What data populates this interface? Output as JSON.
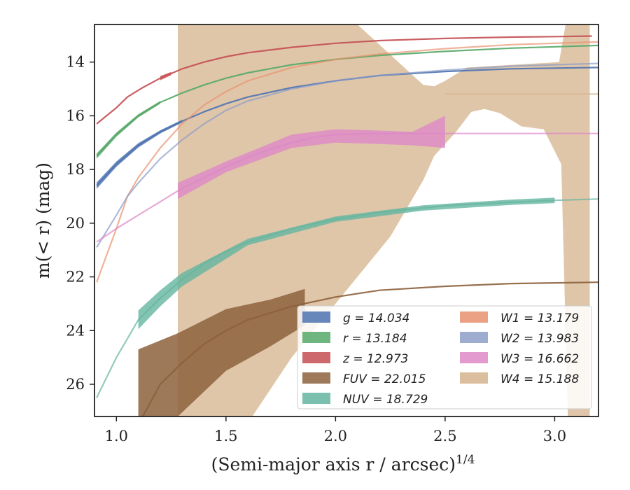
{
  "chart_data": {
    "type": "line",
    "xlabel": "(Semi-major axis r / arcsec)",
    "xlabel_exponent": "1/4",
    "ylabel": "m(< r) (mag)",
    "xlim": [
      0.9,
      3.2
    ],
    "ylim": [
      27.2,
      12.6
    ],
    "y_inverted": true,
    "grid": false,
    "legend_position": "lower-right",
    "x_ticks": [
      {
        "v": 1.0,
        "label": "1.0"
      },
      {
        "v": 1.5,
        "label": "1.5"
      },
      {
        "v": 2.0,
        "label": "2.0"
      },
      {
        "v": 2.5,
        "label": "2.5"
      },
      {
        "v": 3.0,
        "label": "3.0"
      }
    ],
    "y_ticks": [
      {
        "v": 14,
        "label": "14"
      },
      {
        "v": 16,
        "label": "16"
      },
      {
        "v": 18,
        "label": "18"
      },
      {
        "v": 20,
        "label": "20"
      },
      {
        "v": 22,
        "label": "22"
      },
      {
        "v": 24,
        "label": "24"
      },
      {
        "v": 26,
        "label": "26"
      }
    ],
    "series": [
      {
        "name": "g",
        "legend": "g = 14.034",
        "color": "#4c72b0",
        "x": [
          0.91,
          1.0,
          1.1,
          1.2,
          1.3,
          1.4,
          1.5,
          1.6,
          1.8,
          2.0,
          2.2,
          2.5,
          2.8,
          3.2
        ],
        "y": [
          18.6,
          17.8,
          17.1,
          16.6,
          16.2,
          15.85,
          15.55,
          15.3,
          14.95,
          14.7,
          14.5,
          14.35,
          14.25,
          14.2
        ],
        "band_x": [
          0.91,
          1.0,
          1.1,
          1.2,
          1.3
        ],
        "band_width": [
          0.12,
          0.1,
          0.08,
          0.06,
          0.05
        ]
      },
      {
        "name": "r",
        "legend": "r = 13.184",
        "color": "#55a868",
        "x": [
          0.91,
          1.0,
          1.1,
          1.2,
          1.3,
          1.4,
          1.5,
          1.6,
          1.8,
          2.0,
          2.2,
          2.5,
          2.8,
          3.2
        ],
        "y": [
          17.5,
          16.7,
          16.0,
          15.5,
          15.15,
          14.85,
          14.6,
          14.4,
          14.1,
          13.9,
          13.75,
          13.6,
          13.48,
          13.38
        ],
        "band_x": [
          0.91,
          1.0,
          1.1,
          1.2
        ],
        "band_width": [
          0.1,
          0.08,
          0.06,
          0.05
        ]
      },
      {
        "name": "z",
        "legend": "z = 12.973",
        "color": "#c44e52",
        "x": [
          0.91,
          1.0,
          1.05,
          1.12,
          1.2,
          1.3,
          1.4,
          1.5,
          1.6,
          1.8,
          2.0,
          2.2,
          2.5,
          2.8,
          3.0,
          3.17
        ],
        "y": [
          16.3,
          15.7,
          15.3,
          14.95,
          14.6,
          14.25,
          14.0,
          13.8,
          13.65,
          13.45,
          13.3,
          13.2,
          13.12,
          13.07,
          13.05,
          13.03
        ],
        "band_x": [
          1.2,
          1.25
        ],
        "band_width": [
          0.08,
          0.06
        ]
      },
      {
        "name": "FUV",
        "legend": "FUV = 22.015",
        "color": "#8c613c",
        "x": [
          1.12,
          1.2,
          1.3,
          1.4,
          1.5,
          1.6,
          1.8,
          2.0,
          2.2,
          2.5,
          2.8,
          3.2
        ],
        "y": [
          27.2,
          26.0,
          25.2,
          24.5,
          24.0,
          23.6,
          23.1,
          22.75,
          22.5,
          22.35,
          22.25,
          22.2
        ],
        "band_lo": [
          [
            1.1,
            24.7
          ],
          [
            1.28,
            24.1
          ],
          [
            1.5,
            23.2
          ],
          [
            1.7,
            22.85
          ],
          [
            1.86,
            22.45
          ]
        ],
        "band_hi": [
          [
            1.1,
            27.2
          ],
          [
            1.28,
            27.2
          ],
          [
            1.5,
            25.5
          ],
          [
            1.7,
            24.6
          ],
          [
            1.86,
            23.8
          ]
        ]
      },
      {
        "name": "NUV",
        "legend": "NUV = 18.729",
        "color": "#64b5a0",
        "x": [
          0.91,
          1.0,
          1.05,
          1.1,
          1.2,
          1.3,
          1.4,
          1.5,
          1.6,
          1.8,
          2.0,
          2.2,
          2.5,
          2.8,
          3.0,
          3.2
        ],
        "y": [
          26.5,
          25.0,
          24.3,
          23.6,
          22.8,
          22.1,
          21.5,
          21.05,
          20.7,
          20.2,
          19.85,
          19.6,
          19.35,
          19.22,
          19.15,
          19.1
        ],
        "band_x": [
          1.1,
          1.2,
          1.3,
          1.6,
          2.0,
          2.4,
          2.8,
          3.0
        ],
        "band_width": [
          0.35,
          0.3,
          0.25,
          0.12,
          0.1,
          0.1,
          0.1,
          0.1
        ]
      },
      {
        "name": "W1",
        "legend": "W1 = 13.179",
        "color": "#e8916d",
        "x": [
          0.91,
          1.0,
          1.05,
          1.1,
          1.2,
          1.3,
          1.4,
          1.5,
          1.6,
          1.8,
          2.0,
          2.2,
          2.5,
          2.8,
          3.2
        ],
        "y": [
          22.2,
          20.2,
          19.0,
          18.3,
          17.2,
          16.3,
          15.6,
          15.1,
          14.7,
          14.2,
          13.9,
          13.7,
          13.5,
          13.35,
          13.25
        ]
      },
      {
        "name": "W2",
        "legend": "W2 = 13.983",
        "color": "#8c9dc7",
        "x": [
          0.91,
          1.0,
          1.05,
          1.1,
          1.2,
          1.3,
          1.4,
          1.5,
          1.6,
          1.8,
          2.0,
          2.2,
          2.5,
          2.8,
          3.2
        ],
        "y": [
          20.9,
          19.7,
          19.0,
          18.5,
          17.6,
          16.9,
          16.3,
          15.8,
          15.45,
          15.0,
          14.7,
          14.5,
          14.3,
          14.15,
          14.05
        ]
      },
      {
        "name": "W3",
        "legend": "W3 = 16.662",
        "color": "#dd88c7",
        "x": [
          0.91,
          1.0,
          1.1,
          1.2,
          1.3,
          1.4,
          1.5,
          1.6,
          1.7,
          1.8,
          1.9,
          2.0,
          2.2,
          2.5,
          2.8,
          3.2
        ],
        "y": [
          20.7,
          20.2,
          19.7,
          19.2,
          18.7,
          18.3,
          17.9,
          17.55,
          17.25,
          17.0,
          16.8,
          16.7,
          16.66,
          16.66,
          16.66,
          16.66
        ],
        "band_lo": [
          [
            1.28,
            18.5
          ],
          [
            1.5,
            17.7
          ],
          [
            1.8,
            16.7
          ],
          [
            2.0,
            16.5
          ],
          [
            2.2,
            16.55
          ],
          [
            2.35,
            16.6
          ],
          [
            2.5,
            16.0
          ]
        ],
        "band_hi": [
          [
            1.28,
            19.1
          ],
          [
            1.5,
            18.1
          ],
          [
            1.8,
            17.2
          ],
          [
            2.0,
            17.0
          ],
          [
            2.2,
            17.05
          ],
          [
            2.35,
            17.1
          ],
          [
            2.5,
            17.2
          ]
        ]
      },
      {
        "name": "W4",
        "legend": "W4 = 15.188",
        "color": "#d5b38c",
        "x": [
          2.5,
          2.7,
          2.9,
          3.2
        ],
        "y": [
          15.2,
          15.19,
          15.19,
          15.188
        ],
        "region": [
          [
            1.28,
            12.6
          ],
          [
            2.1,
            12.6
          ],
          [
            2.4,
            14.85
          ],
          [
            2.45,
            14.9
          ],
          [
            2.5,
            14.7
          ],
          [
            2.6,
            14.2
          ],
          [
            3.02,
            14.0
          ],
          [
            3.05,
            12.6
          ],
          [
            3.16,
            12.6
          ],
          [
            3.16,
            27.2
          ],
          [
            3.06,
            27.2
          ],
          [
            3.03,
            17.8
          ],
          [
            2.95,
            16.5
          ],
          [
            2.85,
            16.4
          ],
          [
            2.75,
            15.9
          ],
          [
            2.68,
            15.75
          ],
          [
            2.62,
            15.85
          ],
          [
            2.55,
            16.6
          ],
          [
            2.45,
            17.5
          ],
          [
            2.4,
            18.4
          ],
          [
            2.25,
            20.5
          ],
          [
            2.0,
            23.0
          ],
          [
            1.8,
            25.0
          ],
          [
            1.62,
            27.2
          ],
          [
            1.28,
            27.2
          ]
        ]
      }
    ],
    "legend_rows": [
      {
        "col1": "g = 14.034",
        "col2": "W1 = 13.179"
      },
      {
        "col1": "r = 13.184",
        "col2": "W2 = 13.983"
      },
      {
        "col1": "z = 12.973",
        "col2": "W3 = 16.662"
      },
      {
        "col1": "FUV = 22.015",
        "col2": "W4 = 15.188"
      },
      {
        "col1": "NUV = 18.729",
        "col2": ""
      }
    ]
  }
}
